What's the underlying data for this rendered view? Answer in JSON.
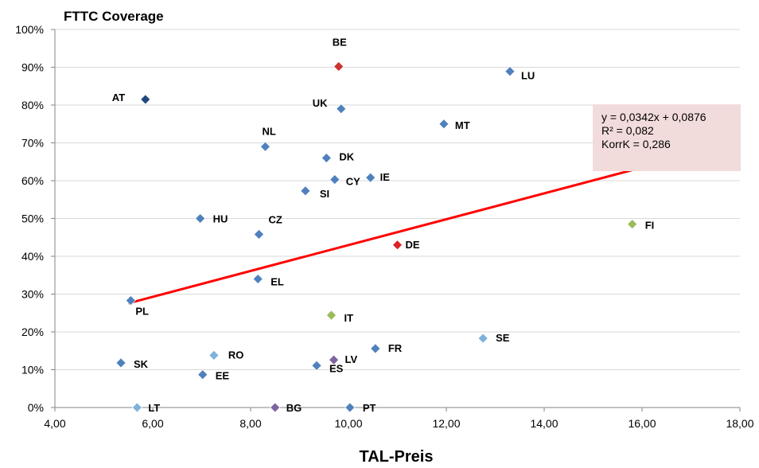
{
  "chart_data": {
    "type": "scatter",
    "title": "FTTC Coverage",
    "xlabel": "TAL-Preis",
    "ylabel": "",
    "xlim": [
      4,
      18
    ],
    "ylim": [
      0,
      100
    ],
    "x_ticks": [
      "4,00",
      "6,00",
      "8,00",
      "10,00",
      "12,00",
      "14,00",
      "16,00",
      "18,00"
    ],
    "y_ticks": [
      "0%",
      "10%",
      "20%",
      "30%",
      "40%",
      "50%",
      "60%",
      "70%",
      "80%",
      "90%",
      "100%"
    ],
    "grid": "horizontal",
    "points": [
      {
        "label": "BE",
        "x": 9.8,
        "y": 90.2,
        "color": "#cc3333"
      },
      {
        "label": "LU",
        "x": 13.3,
        "y": 88.9,
        "color": "#4f81bd"
      },
      {
        "label": "AT",
        "x": 5.85,
        "y": 81.5,
        "color": "#1f497d"
      },
      {
        "label": "UK",
        "x": 9.85,
        "y": 79.0,
        "color": "#4f81bd"
      },
      {
        "label": "MT",
        "x": 11.95,
        "y": 75.0,
        "color": "#4f81bd"
      },
      {
        "label": "NL",
        "x": 8.3,
        "y": 69.0,
        "color": "#4f81bd"
      },
      {
        "label": "DK",
        "x": 9.55,
        "y": 66.0,
        "color": "#4f81bd"
      },
      {
        "label": "CY",
        "x": 9.72,
        "y": 60.3,
        "color": "#4f81bd"
      },
      {
        "label": "IE",
        "x": 10.45,
        "y": 60.8,
        "color": "#4f81bd"
      },
      {
        "label": "SI",
        "x": 9.12,
        "y": 57.3,
        "color": "#4f81bd"
      },
      {
        "label": "HU",
        "x": 6.97,
        "y": 50.0,
        "color": "#4f81bd"
      },
      {
        "label": "FI",
        "x": 15.8,
        "y": 48.5,
        "color": "#9bbb59"
      },
      {
        "label": "CZ",
        "x": 8.17,
        "y": 45.8,
        "color": "#4f81bd"
      },
      {
        "label": "DE",
        "x": 11.0,
        "y": 43.0,
        "color": "#dd2222"
      },
      {
        "label": "EL",
        "x": 8.15,
        "y": 34.0,
        "color": "#4f81bd"
      },
      {
        "label": "PL",
        "x": 5.55,
        "y": 28.3,
        "color": "#4f81bd"
      },
      {
        "label": "IT",
        "x": 9.65,
        "y": 24.4,
        "color": "#9bbb59"
      },
      {
        "label": "SE",
        "x": 12.75,
        "y": 18.3,
        "color": "#7fb2d9"
      },
      {
        "label": "FR",
        "x": 10.55,
        "y": 15.6,
        "color": "#4f81bd"
      },
      {
        "label": "RO",
        "x": 7.25,
        "y": 13.8,
        "color": "#7fb2d9"
      },
      {
        "label": "LV",
        "x": 9.7,
        "y": 12.6,
        "color": "#8064a2"
      },
      {
        "label": "SK",
        "x": 5.35,
        "y": 11.8,
        "color": "#4f81bd"
      },
      {
        "label": "ES",
        "x": 9.35,
        "y": 11.1,
        "color": "#4f81bd"
      },
      {
        "label": "EE",
        "x": 7.02,
        "y": 8.7,
        "color": "#4f81bd"
      },
      {
        "label": "LT",
        "x": 5.68,
        "y": 0.0,
        "color": "#7fb2d9"
      },
      {
        "label": "BG",
        "x": 8.5,
        "y": 0.0,
        "color": "#8064a2"
      },
      {
        "label": "PT",
        "x": 10.03,
        "y": 0.0,
        "color": "#4f81bd"
      }
    ],
    "trendline": {
      "slope": 3.42,
      "intercept": 8.76,
      "x_from": 5.5,
      "x_to": 15.8,
      "color": "#ff0000"
    },
    "annotation": {
      "lines": [
        "y = 0,0342x + 0,0876",
        "R² = 0,082",
        "KorrK = 0,286"
      ],
      "background": "#f2dcdb"
    },
    "colors": {
      "axis": "#868686",
      "grid": "#d9d9d9"
    }
  }
}
